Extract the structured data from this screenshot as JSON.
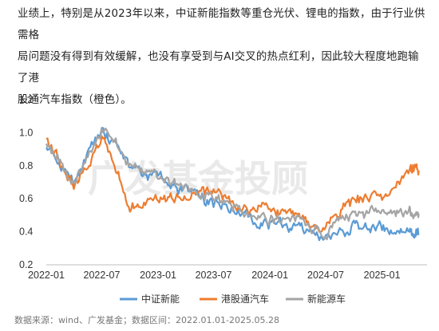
{
  "intro": {
    "line1": "业绩上，特别是从2023年以来，中证新能指数等重仓光伏、锂电的指数，由于行业供需格",
    "line2": "局问题没有得到有效缓解，也没有享受到与AI交叉的热点红利，因此较大程度地跑输了港",
    "line3": "股通汽车指数（橙色）。"
  },
  "watermark": "广发基金投顾",
  "source": "数据来源：wind、广发基金；数据区间：2022.01.01-2025.05.28",
  "chart_data": {
    "type": "line",
    "x": [
      "2022-01",
      "2022-04",
      "2022-07",
      "2022-10",
      "2023-01",
      "2023-04",
      "2023-07",
      "2023-10",
      "2024-01",
      "2024-04",
      "2024-07",
      "2024-10",
      "2025-01",
      "2025-04",
      "2025-05"
    ],
    "xticks": [
      "2022-01",
      "2022-07",
      "2023-01",
      "2023-07",
      "2024-01",
      "2024-07",
      "2025-01"
    ],
    "yticks": [
      "0.2",
      "0.4",
      "0.6",
      "0.8",
      "1.0",
      "1.2"
    ],
    "ylim": [
      0.2,
      1.2
    ],
    "grid": false,
    "legend_position": "bottom",
    "series": [
      {
        "name": "中证新能",
        "color": "#5b9bd5",
        "values": [
          0.93,
          0.72,
          1.02,
          0.8,
          0.72,
          0.64,
          0.58,
          0.5,
          0.44,
          0.43,
          0.36,
          0.43,
          0.42,
          0.39,
          0.38
        ]
      },
      {
        "name": "港股通汽车",
        "color": "#ed7d31",
        "values": [
          0.98,
          0.66,
          0.97,
          0.55,
          0.6,
          0.6,
          0.65,
          0.55,
          0.55,
          0.48,
          0.42,
          0.6,
          0.6,
          0.78,
          0.77
        ]
      },
      {
        "name": "新能源车",
        "color": "#a5a5a5",
        "values": [
          0.95,
          0.68,
          1.03,
          0.81,
          0.73,
          0.66,
          0.61,
          0.53,
          0.47,
          0.47,
          0.39,
          0.51,
          0.52,
          0.52,
          0.51
        ]
      }
    ]
  }
}
